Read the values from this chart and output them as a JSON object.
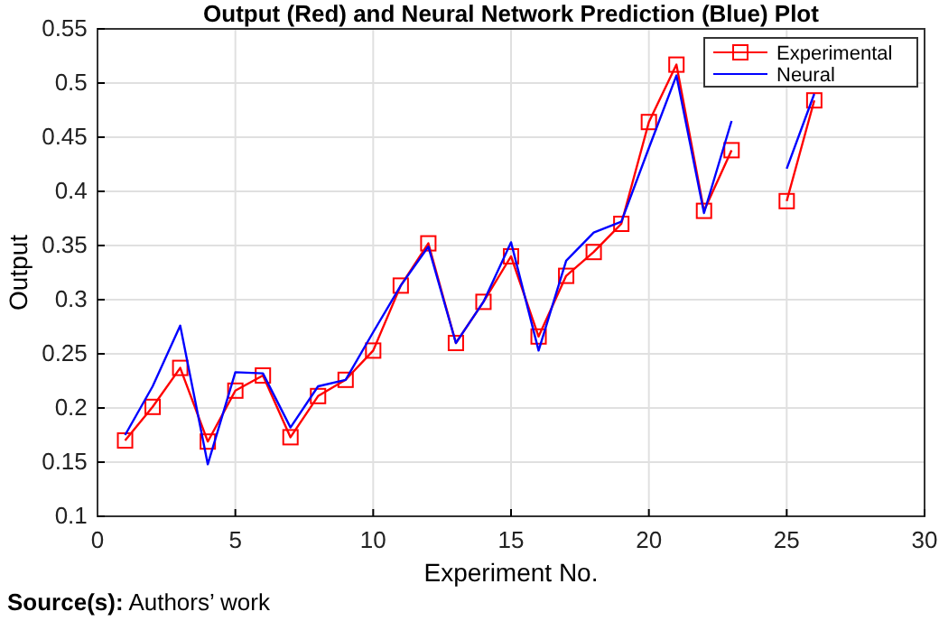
{
  "chart_data": {
    "type": "line",
    "title": "Output (Red) and Neural Network Prediction (Blue) Plot",
    "xlabel": "Experiment No.",
    "ylabel": "Output",
    "x": [
      1,
      2,
      3,
      4,
      5,
      6,
      7,
      8,
      9,
      10,
      11,
      12,
      13,
      14,
      15,
      16,
      17,
      18,
      19,
      20,
      21,
      22,
      23,
      24,
      25,
      26
    ],
    "series": [
      {
        "name": "Experimental",
        "color": "#ff0000",
        "marker": "square",
        "values": [
          0.17,
          0.201,
          0.237,
          0.169,
          0.216,
          0.23,
          0.173,
          0.211,
          0.226,
          0.253,
          0.313,
          0.352,
          0.26,
          0.298,
          0.34,
          0.266,
          0.322,
          0.344,
          0.37,
          0.464,
          0.517,
          0.382,
          0.438,
          null,
          0.391,
          0.484
        ]
      },
      {
        "name": "Neural",
        "color": "#0000ff",
        "marker": "none",
        "values": [
          0.175,
          0.22,
          0.276,
          0.148,
          0.233,
          0.232,
          0.182,
          0.22,
          0.226,
          0.27,
          0.313,
          0.349,
          0.26,
          0.298,
          0.353,
          0.253,
          0.336,
          0.362,
          0.372,
          0.44,
          0.507,
          0.38,
          0.465,
          null,
          0.421,
          0.49
        ]
      }
    ],
    "xlim": [
      0,
      30
    ],
    "xticks": [
      0,
      5,
      10,
      15,
      20,
      25,
      30
    ],
    "ylim": [
      0.1,
      0.55
    ],
    "yticks": [
      0.1,
      0.15,
      0.2,
      0.25,
      0.3,
      0.35,
      0.4,
      0.45,
      0.5,
      0.55
    ],
    "grid": true,
    "legend": "top right",
    "line_style": "solid",
    "annotations": [
      "Source(s): Authors’ work"
    ]
  }
}
